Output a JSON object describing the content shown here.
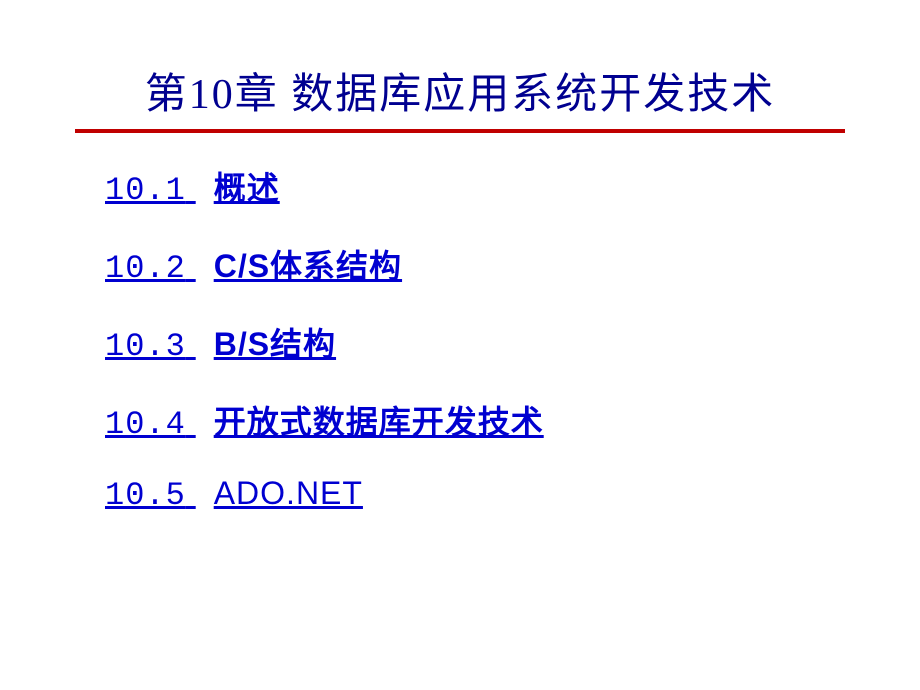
{
  "slide": {
    "title": "第10章   数据库应用系统开发技术",
    "title_color": "#000090",
    "title_fontsize": 42,
    "underline_color": "#c00000",
    "background_color": "#ffffff",
    "toc": [
      {
        "number": "10.1",
        "label": "概述",
        "bold": true
      },
      {
        "number": "10.2",
        "label": "C/S体系结构",
        "bold": true
      },
      {
        "number": "10.3",
        "label": "B/S结构",
        "bold": true
      },
      {
        "number": "10.4",
        "label": "开放式数据库开发技术",
        "bold": true
      },
      {
        "number": "10.5",
        "label": "ADO.NET",
        "bold": false
      }
    ],
    "toc_color": "#0000d0",
    "toc_fontsize": 32
  }
}
